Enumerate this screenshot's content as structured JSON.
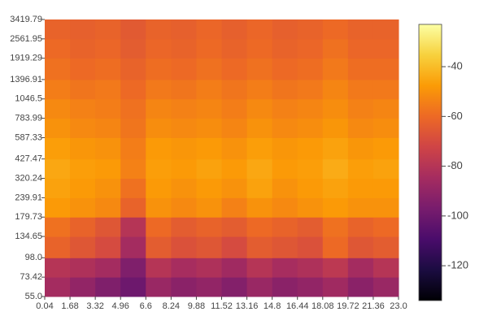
{
  "chart_data": {
    "type": "heatmap",
    "x": [
      0.04,
      1.68,
      3.32,
      4.96,
      6.6,
      8.24,
      9.88,
      11.52,
      13.16,
      14.8,
      16.44,
      18.08,
      19.72,
      21.36,
      23.0
    ],
    "y": [
      55.0,
      73.42,
      98.0,
      134.65,
      179.73,
      239.91,
      320.24,
      427.47,
      587.33,
      783.99,
      1046.5,
      1396.91,
      1919.29,
      2561.95,
      3419.79
    ],
    "z": [
      [
        -85,
        -90,
        -95,
        -100,
        -88,
        -92,
        -90,
        -94,
        -88,
        -92,
        -90,
        -86,
        -92,
        -88
      ],
      [
        -80,
        -82,
        -85,
        -95,
        -80,
        -84,
        -82,
        -86,
        -80,
        -84,
        -82,
        -78,
        -85,
        -80
      ],
      [
        -62,
        -66,
        -70,
        -85,
        -64,
        -68,
        -66,
        -70,
        -64,
        -66,
        -68,
        -60,
        -66,
        -64
      ],
      [
        -58,
        -62,
        -66,
        -80,
        -60,
        -64,
        -62,
        -64,
        -60,
        -62,
        -64,
        -58,
        -62,
        -60
      ],
      [
        -48,
        -50,
        -52,
        -62,
        -50,
        -52,
        -50,
        -54,
        -50,
        -52,
        -50,
        -48,
        -50,
        -50
      ],
      [
        -46,
        -48,
        -50,
        -58,
        -48,
        -50,
        -48,
        -50,
        -46,
        -50,
        -48,
        -46,
        -48,
        -48
      ],
      [
        -45,
        -47,
        -48,
        -54,
        -47,
        -48,
        -46,
        -48,
        -45,
        -48,
        -47,
        -44,
        -47,
        -46
      ],
      [
        -47,
        -49,
        -50,
        -55,
        -48,
        -49,
        -48,
        -50,
        -47,
        -49,
        -48,
        -46,
        -49,
        -48
      ],
      [
        -50,
        -52,
        -53,
        -57,
        -51,
        -52,
        -51,
        -53,
        -50,
        -52,
        -51,
        -49,
        -52,
        -51
      ],
      [
        -52,
        -54,
        -55,
        -58,
        -53,
        -54,
        -53,
        -55,
        -52,
        -54,
        -53,
        -51,
        -54,
        -53
      ],
      [
        -55,
        -57,
        -56,
        -60,
        -56,
        -57,
        -55,
        -57,
        -55,
        -57,
        -56,
        -53,
        -56,
        -56
      ],
      [
        -58,
        -60,
        -59,
        -62,
        -59,
        -60,
        -58,
        -60,
        -58,
        -60,
        -59,
        -56,
        -59,
        -59
      ],
      [
        -60,
        -62,
        -61,
        -64,
        -61,
        -62,
        -60,
        -62,
        -60,
        -62,
        -61,
        -58,
        -61,
        -61
      ],
      [
        -62,
        -63,
        -62,
        -65,
        -62,
        -63,
        -61,
        -63,
        -61,
        -63,
        -62,
        -60,
        -62,
        -62
      ]
    ],
    "xlim": [
      0.04,
      23.0
    ],
    "xticks": [
      0.04,
      1.68,
      3.32,
      4.96,
      6.6,
      8.24,
      9.88,
      11.52,
      13.16,
      14.8,
      16.44,
      18.08,
      19.72,
      21.36,
      {
        "value": 23,
        "label": "23.0"
      }
    ],
    "ylim": [
      55,
      3419.79
    ],
    "ylog": true,
    "yticks": [
      {
        "value": 55,
        "label": "55.0"
      },
      73.42,
      {
        "value": 98,
        "label": "98.0"
      },
      134.65,
      179.73,
      239.91,
      320.24,
      427.47,
      587.33,
      783.99,
      1046.5,
      1396.91,
      1919.29,
      2561.95,
      3419.79
    ],
    "zlim": [
      -134,
      -23
    ],
    "zticks": [
      -40,
      -60,
      -80,
      -100,
      -120
    ],
    "colorscale": [
      "#000004",
      "#1b0c41",
      "#4a0c6b",
      "#781c6d",
      "#a52c60",
      "#cf4446",
      "#ed6925",
      "#fb9b06",
      "#f7d13d",
      "#fcffa4"
    ]
  }
}
